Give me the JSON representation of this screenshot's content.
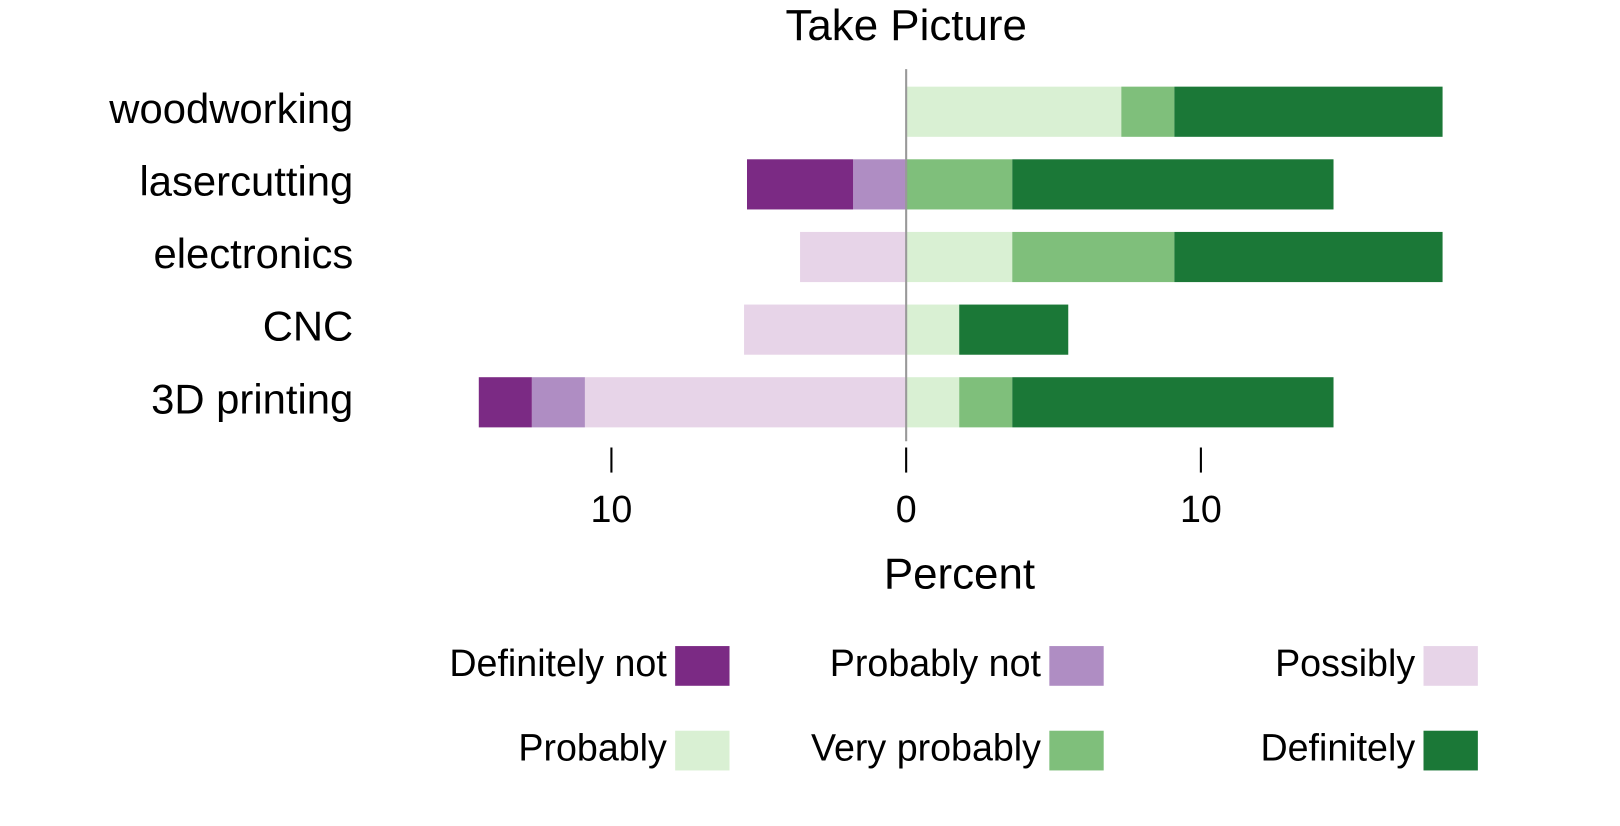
{
  "chart_data": {
    "type": "diverging-bar",
    "title": "Take Picture",
    "xlabel": "Percent",
    "categories": [
      "woodworking",
      "lasercutting",
      "electronics",
      "CNC",
      "3D printing"
    ],
    "series": [
      {
        "name": "Definitely not",
        "color": "#7b2a84",
        "values": [
          0,
          -3.6,
          0,
          0,
          -1.8
        ]
      },
      {
        "name": "Probably not",
        "color": "#af8dc3",
        "values": [
          0,
          -1.8,
          0,
          0,
          -1.8
        ]
      },
      {
        "name": "Possibly",
        "color": "#e7d4e8",
        "values": [
          0,
          0,
          -3.6,
          -5.5,
          -10.9
        ]
      },
      {
        "name": "Probably",
        "color": "#d9f0d3",
        "values": [
          7.3,
          0,
          3.6,
          1.8,
          1.8
        ]
      },
      {
        "name": "Very probably",
        "color": "#7fbf7b",
        "values": [
          1.8,
          3.6,
          5.5,
          0,
          1.8
        ]
      },
      {
        "name": "Definitely",
        "color": "#1b7837",
        "values": [
          9.1,
          10.9,
          9.1,
          3.7,
          10.9
        ]
      }
    ],
    "xlim": [
      -15,
      20
    ],
    "xticks": [
      {
        "value": -10,
        "label": "10"
      },
      0,
      10
    ],
    "legend": "bottom"
  }
}
